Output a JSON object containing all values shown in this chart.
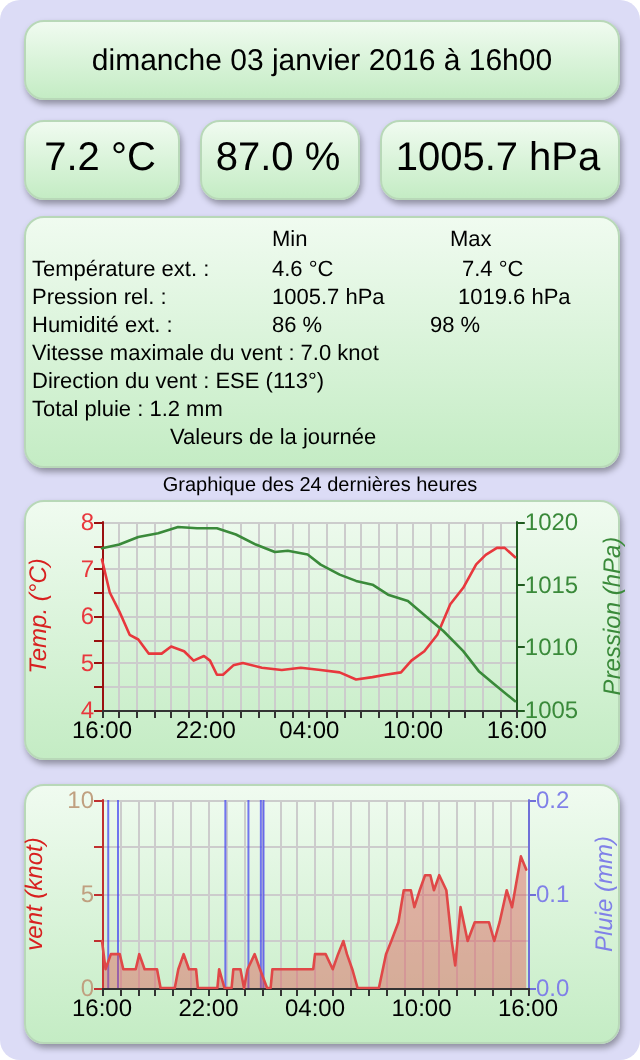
{
  "chart_data": [
    {
      "type": "other",
      "title": "dimanche 03 janvier 2016 à 16h00",
      "annotations": [
        "7.2 °C",
        "87.0 %",
        "1005.7 hPa",
        "Min",
        "Max",
        "Température ext. :",
        "4.6 °C",
        "7.4 °C",
        "Pression rel. :",
        "1005.7 hPa",
        "1019.6 hPa",
        "Humidité ext. :",
        "86 %",
        "98 %",
        "Vitesse maximale du vent : 7.0 knot",
        "Direction du vent : ESE (113°)",
        "Total pluie : 1.2 mm",
        "Valeurs de la journée"
      ]
    },
    {
      "type": "line",
      "title": "Graphique des 24 dernières heures",
      "ylabel": "Temp. (°C)",
      "y2label": "Pression (hPa)",
      "grid": true,
      "xlim": [
        "2016-01-02T16:00",
        "2016-01-03T16:00"
      ],
      "xticks": [
        {
          "value": "2016-01-02T16:00",
          "label": "16:00"
        },
        {
          "value": "2016-01-02T17:00",
          "label": null
        },
        {
          "value": "2016-01-02T18:00",
          "label": null
        },
        {
          "value": "2016-01-02T19:00",
          "label": null
        },
        {
          "value": "2016-01-02T20:00",
          "label": null
        },
        {
          "value": "2016-01-02T21:00",
          "label": null
        },
        {
          "value": "2016-01-02T22:00",
          "label": "22:00"
        },
        {
          "value": "2016-01-02T23:00",
          "label": null
        },
        {
          "value": "2016-01-03T00:00",
          "label": null
        },
        {
          "value": "2016-01-03T01:00",
          "label": null
        },
        {
          "value": "2016-01-03T02:00",
          "label": null
        },
        {
          "value": "2016-01-03T03:00",
          "label": null
        },
        {
          "value": "2016-01-03T04:00",
          "label": "04:00"
        },
        {
          "value": "2016-01-03T05:00",
          "label": null
        },
        {
          "value": "2016-01-03T06:00",
          "label": null
        },
        {
          "value": "2016-01-03T07:00",
          "label": null
        },
        {
          "value": "2016-01-03T08:00",
          "label": null
        },
        {
          "value": "2016-01-03T09:00",
          "label": null
        },
        {
          "value": "2016-01-03T10:00",
          "label": "10:00"
        },
        {
          "value": "2016-01-03T11:00",
          "label": null
        },
        {
          "value": "2016-01-03T12:00",
          "label": null
        },
        {
          "value": "2016-01-03T13:00",
          "label": null
        },
        {
          "value": "2016-01-03T14:00",
          "label": null
        },
        {
          "value": "2016-01-03T15:00",
          "label": null
        },
        {
          "value": "2016-01-03T16:00",
          "label": "16:00"
        }
      ],
      "ylim": [
        4,
        8
      ],
      "yticks": [
        4,
        {
          "value": 4.5,
          "label": null
        },
        5,
        {
          "value": 5.5,
          "label": null
        },
        6,
        {
          "value": 6.5,
          "label": null
        },
        7,
        {
          "value": 7.5,
          "label": null
        },
        8
      ],
      "y2lim": [
        1005,
        1020
      ],
      "y2ticks": [
        1005,
        1010,
        1015,
        1020
      ],
      "series": [
        {
          "color": "#e8383d",
          "x": [
            "2016-01-02T16:00",
            "2016-01-02T16:27",
            "2016-01-02T17:00",
            "2016-01-02T17:36",
            "2016-01-02T18:06",
            "2016-01-02T18:42",
            "2016-01-02T19:27",
            "2016-01-02T20:00",
            "2016-01-02T20:45",
            "2016-01-02T21:18",
            "2016-01-02T21:54",
            "2016-01-02T22:15",
            "2016-01-02T22:39",
            "2016-01-02T23:00",
            "2016-01-02T23:36",
            "2016-01-03T00:09",
            "2016-01-03T01:15",
            "2016-01-03T02:24",
            "2016-01-03T03:30",
            "2016-01-03T04:39",
            "2016-01-03T05:45",
            "2016-01-03T06:42",
            "2016-01-03T07:39",
            "2016-01-03T08:24",
            "2016-01-03T09:18",
            "2016-01-03T09:54",
            "2016-01-03T10:39",
            "2016-01-03T11:24",
            "2016-01-03T12:09",
            "2016-01-03T12:54",
            "2016-01-03T13:39",
            "2016-01-03T14:12",
            "2016-01-03T14:51",
            "2016-01-03T15:18",
            "2016-01-03T15:54"
          ],
          "values": [
            7.2,
            6.5,
            6.1,
            5.6,
            5.5,
            5.2,
            5.2,
            5.35,
            5.25,
            5.05,
            5.15,
            5.05,
            4.75,
            4.75,
            4.95,
            5,
            4.9,
            4.85,
            4.9,
            4.85,
            4.8,
            4.65,
            4.7,
            4.75,
            4.8,
            5.05,
            5.25,
            5.6,
            6.25,
            6.6,
            7.1,
            7.3,
            7.45,
            7.45,
            7.25
          ]
        },
        {
          "color": "#3a8a3a",
          "axis": "y2",
          "x": [
            "2016-01-02T16:00",
            "2016-01-02T17:00",
            "2016-01-02T18:06",
            "2016-01-02T19:15",
            "2016-01-02T20:24",
            "2016-01-02T21:30",
            "2016-01-02T22:39",
            "2016-01-02T23:45",
            "2016-01-03T00:54",
            "2016-01-03T02:00",
            "2016-01-03T02:45",
            "2016-01-03T03:54",
            "2016-01-03T04:39",
            "2016-01-03T05:45",
            "2016-01-03T06:42",
            "2016-01-03T07:39",
            "2016-01-03T08:33",
            "2016-01-03T09:42",
            "2016-01-03T10:48",
            "2016-01-03T11:45",
            "2016-01-03T12:54",
            "2016-01-03T13:48",
            "2016-01-03T14:45",
            "2016-01-03T15:54"
          ],
          "values": [
            1017.9,
            1018.2,
            1018.8,
            1019.1,
            1019.6,
            1019.5,
            1019.5,
            1019,
            1018.2,
            1017.6,
            1017.7,
            1017.4,
            1016.6,
            1015.8,
            1015.3,
            1015,
            1014.2,
            1013.7,
            1012.4,
            1011.3,
            1009.7,
            1008.1,
            1007,
            1005.7
          ]
        }
      ]
    },
    {
      "type": "area",
      "ylabel": "vent (knot)",
      "y2label": "Pluie (mm)",
      "grid": true,
      "xlim": [
        "2016-01-02T16:00",
        "2016-01-03T16:00"
      ],
      "xticks": [
        {
          "value": "2016-01-02T16:00",
          "label": "16:00"
        },
        {
          "value": "2016-01-02T17:00",
          "label": null
        },
        {
          "value": "2016-01-02T18:00",
          "label": null
        },
        {
          "value": "2016-01-02T19:00",
          "label": null
        },
        {
          "value": "2016-01-02T20:00",
          "label": null
        },
        {
          "value": "2016-01-02T21:00",
          "label": null
        },
        {
          "value": "2016-01-02T22:00",
          "label": "22:00"
        },
        {
          "value": "2016-01-02T23:00",
          "label": null
        },
        {
          "value": "2016-01-03T00:00",
          "label": null
        },
        {
          "value": "2016-01-03T01:00",
          "label": null
        },
        {
          "value": "2016-01-03T02:00",
          "label": null
        },
        {
          "value": "2016-01-03T03:00",
          "label": null
        },
        {
          "value": "2016-01-03T04:00",
          "label": "04:00"
        },
        {
          "value": "2016-01-03T05:00",
          "label": null
        },
        {
          "value": "2016-01-03T06:00",
          "label": null
        },
        {
          "value": "2016-01-03T07:00",
          "label": null
        },
        {
          "value": "2016-01-03T08:00",
          "label": null
        },
        {
          "value": "2016-01-03T09:00",
          "label": null
        },
        {
          "value": "2016-01-03T10:00",
          "label": "10:00"
        },
        {
          "value": "2016-01-03T11:00",
          "label": null
        },
        {
          "value": "2016-01-03T12:00",
          "label": null
        },
        {
          "value": "2016-01-03T13:00",
          "label": null
        },
        {
          "value": "2016-01-03T14:00",
          "label": null
        },
        {
          "value": "2016-01-03T15:00",
          "label": null
        },
        {
          "value": "2016-01-03T16:00",
          "label": "16:00"
        }
      ],
      "ylim": [
        0,
        10
      ],
      "yticks": [
        0,
        {
          "value": 2.5,
          "label": null
        },
        5,
        {
          "value": 7.5,
          "label": null
        },
        10
      ],
      "y2lim": [
        0,
        0.2
      ],
      "y2ticks": [
        {
          "value": 0,
          "label": "0.0"
        },
        {
          "value": 0.1,
          "label": "0.1"
        },
        {
          "value": 0.2,
          "label": "0.2"
        }
      ],
      "series": [
        {
          "type": "area",
          "color": "#e04848",
          "x": [
            "2016-01-02T16:00",
            "2016-01-02T16:12",
            "2016-01-02T16:30",
            "2016-01-02T17:00",
            "2016-01-02T17:12",
            "2016-01-02T17:54",
            "2016-01-02T18:06",
            "2016-01-02T18:24",
            "2016-01-02T19:06",
            "2016-01-02T19:18",
            "2016-01-02T20:06",
            "2016-01-02T20:18",
            "2016-01-02T20:36",
            "2016-01-02T20:54",
            "2016-01-02T21:18",
            "2016-01-02T21:24",
            "2016-01-02T22:30",
            "2016-01-02T22:36",
            "2016-01-02T22:54",
            "2016-01-02T23:18",
            "2016-01-02T23:24",
            "2016-01-02T23:48",
            "2016-01-03T00:00",
            "2016-01-03T00:12",
            "2016-01-03T00:36",
            "2016-01-03T00:54",
            "2016-01-03T01:18",
            "2016-01-03T01:30",
            "2016-01-03T01:36",
            "2016-01-03T03:54",
            "2016-01-03T04:00",
            "2016-01-03T04:36",
            "2016-01-03T05:00",
            "2016-01-03T05:18",
            "2016-01-03T05:36",
            "2016-01-03T05:48",
            "2016-01-03T06:06",
            "2016-01-03T06:24",
            "2016-01-03T07:36",
            "2016-01-03T08:00",
            "2016-01-03T08:18",
            "2016-01-03T08:42",
            "2016-01-03T09:00",
            "2016-01-03T09:24",
            "2016-01-03T09:36",
            "2016-01-03T09:54",
            "2016-01-03T10:12",
            "2016-01-03T10:30",
            "2016-01-03T10:42",
            "2016-01-03T11:00",
            "2016-01-03T11:24",
            "2016-01-03T11:42",
            "2016-01-03T11:54",
            "2016-01-03T12:12",
            "2016-01-03T12:36",
            "2016-01-03T13:00",
            "2016-01-03T13:48",
            "2016-01-03T14:06",
            "2016-01-03T14:24",
            "2016-01-03T14:48",
            "2016-01-03T15:06",
            "2016-01-03T15:36",
            "2016-01-03T15:54"
          ],
          "values": [
            2.5,
            1,
            1.8,
            1.8,
            1,
            1,
            1.8,
            1,
            1,
            0,
            0,
            1,
            1.8,
            1,
            1,
            0,
            0,
            1,
            0,
            0,
            1,
            1,
            0,
            1,
            1.8,
            1,
            0,
            0,
            1,
            1,
            1.8,
            1.8,
            1,
            1.8,
            2.5,
            1.8,
            1,
            0,
            0,
            1.8,
            2.5,
            3.5,
            5.2,
            5.2,
            4.3,
            5.2,
            6,
            6,
            5.2,
            6,
            5.2,
            2.5,
            1.2,
            4.3,
            2.5,
            3.5,
            3.5,
            2.5,
            3.5,
            5.2,
            4.3,
            7,
            6.3
          ]
        },
        {
          "type": "bar",
          "axis": "y2",
          "color": "#4848f0",
          "x": [
            "2016-01-02T16:21",
            "2016-01-02T16:54",
            "2016-01-02T22:57",
            "2016-01-03T00:15",
            "2016-01-03T00:57",
            "2016-01-03T01:06"
          ],
          "values": [
            0.2,
            0.2,
            0.2,
            0.2,
            0.2,
            0.2
          ]
        }
      ]
    }
  ]
}
